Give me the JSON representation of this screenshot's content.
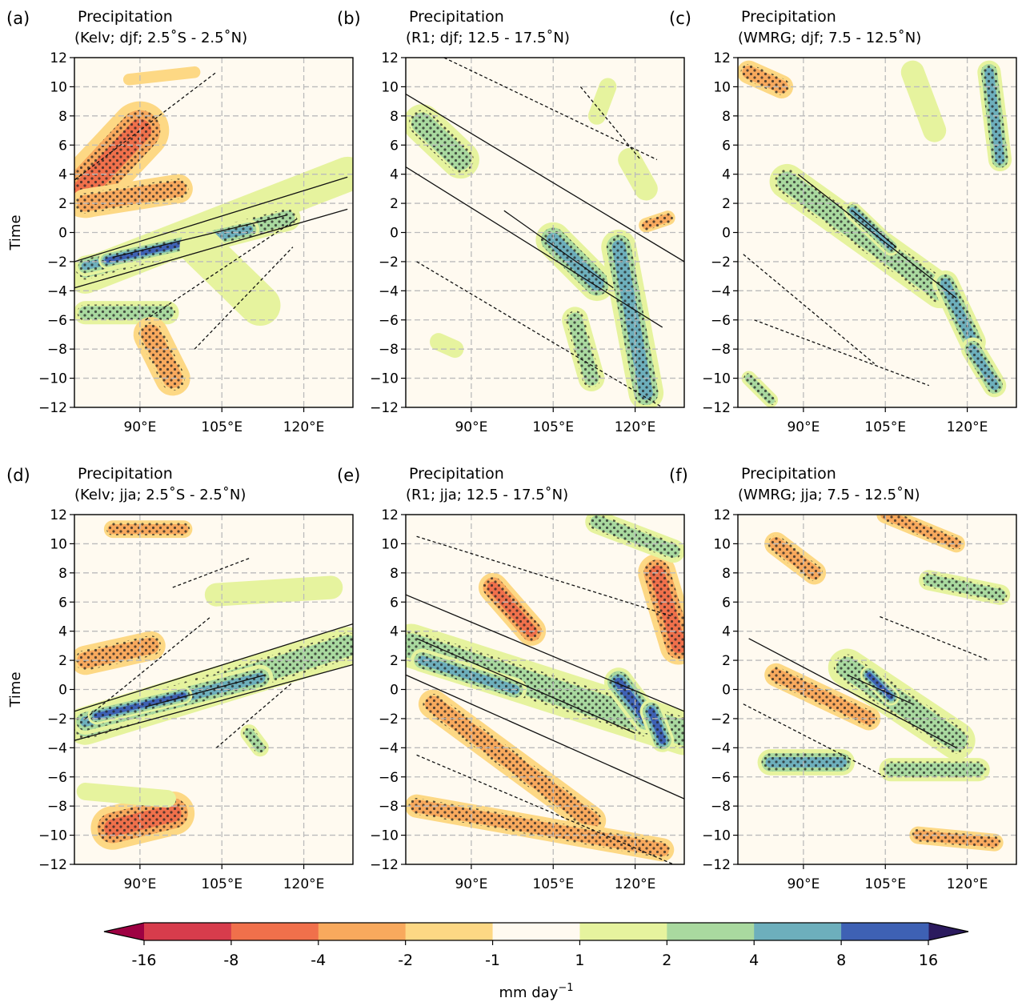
{
  "figure": {
    "ylabel": "Time",
    "colorbar": {
      "levels": [
        "-16",
        "-8",
        "-4",
        "-2",
        "-1",
        "1",
        "2",
        "4",
        "8",
        "16"
      ],
      "colors": [
        "#d73c4c",
        "#f0704b",
        "#f8a95d",
        "#fdd884",
        "#fffaf0",
        "#e6f39e",
        "#a9d99f",
        "#6dafbc",
        "#3e61b4"
      ],
      "extend_low_color": "#9e0142",
      "extend_high_color": "#2b1a5e",
      "unit_label": "mm day",
      "unit_exponent": "−1"
    }
  },
  "chart_data": [
    {
      "panel": "(a)",
      "type": "heatmap",
      "title": "Precipitation",
      "subtitle": "(Kelv; djf; 2.5˚S - 2.5˚N)",
      "xlabel": "",
      "ylabel": "Time",
      "xticks": [
        "90°E",
        "105°E",
        "120°E"
      ],
      "xtick_values": [
        90,
        105,
        120
      ],
      "yticks": [
        "12",
        "10",
        "8",
        "6",
        "4",
        "2",
        "0",
        "−2",
        "−4",
        "−6",
        "−8",
        "−10",
        "−12"
      ],
      "xlim": [
        78,
        129
      ],
      "ylim": [
        -12,
        12
      ],
      "grid": true,
      "bands": [
        {
          "x1": 80,
          "y1": -3.0,
          "x2": 128,
          "y2": 4.0,
          "w": 1.2,
          "v": 1.5
        },
        {
          "x1": 80,
          "y1": -2.6,
          "x2": 117,
          "y2": 1.0,
          "w": 0.9,
          "v": 3
        },
        {
          "x1": 80,
          "y1": -2.3,
          "x2": 110,
          "y2": 0.2,
          "w": 0.7,
          "v": 6
        },
        {
          "x1": 84,
          "y1": -1.9,
          "x2": 100,
          "y2": -0.6,
          "w": 0.6,
          "v": 10
        },
        {
          "x1": 80,
          "y1": -5.5,
          "x2": 95,
          "y2": -5.5,
          "w": 0.8,
          "v": 2
        },
        {
          "x1": 80,
          "y1": 3.0,
          "x2": 90,
          "y2": 7.0,
          "w": 2.0,
          "v": -4
        },
        {
          "x1": 80,
          "y1": 2.0,
          "x2": 97,
          "y2": 3.0,
          "w": 1.0,
          "v": -3
        },
        {
          "x1": 92,
          "y1": -7.0,
          "x2": 96,
          "y2": -10.0,
          "w": 1.2,
          "v": -3
        },
        {
          "x1": 88,
          "y1": 10.5,
          "x2": 100,
          "y2": 11.0,
          "w": 0.4,
          "v": -1.5
        },
        {
          "x1": 101,
          "y1": -1.0,
          "x2": 112,
          "y2": -5.0,
          "w": 1.4,
          "v": 1.5
        }
      ],
      "contours": [
        {
          "style": "solid",
          "x": [
            78,
            128
          ],
          "y": [
            -2.0,
            3.8
          ]
        },
        {
          "style": "solid",
          "x": [
            78,
            128
          ],
          "y": [
            -3.8,
            1.6
          ]
        },
        {
          "style": "solid",
          "x": [
            85,
            117
          ],
          "y": [
            -1.7,
            1.2
          ]
        },
        {
          "style": "dashed",
          "x": [
            78,
            104
          ],
          "y": [
            3.6,
            11.0
          ]
        },
        {
          "style": "dashed",
          "x": [
            91,
            119
          ],
          "y": [
            -6.0,
            1.0
          ]
        },
        {
          "style": "dashed",
          "x": [
            100,
            118
          ],
          "y": [
            -8.0,
            -1.0
          ]
        }
      ]
    },
    {
      "panel": "(b)",
      "type": "heatmap",
      "title": "Precipitation",
      "subtitle": "(R1; djf; 12.5 - 17.5˚N)",
      "xlabel": "",
      "ylabel": "",
      "xticks": [
        "90°E",
        "105°E",
        "120°E"
      ],
      "xtick_values": [
        90,
        105,
        120
      ],
      "yticks": [
        "12",
        "10",
        "8",
        "6",
        "4",
        "2",
        "0",
        "−2",
        "−4",
        "−6",
        "−8",
        "−10",
        "−12"
      ],
      "xlim": [
        78,
        129
      ],
      "ylim": [
        -12,
        12
      ],
      "grid": true,
      "bands": [
        {
          "x1": 81,
          "y1": 7.5,
          "x2": 88,
          "y2": 5.0,
          "w": 1.3,
          "v": 2.5
        },
        {
          "x1": 105,
          "y1": -0.5,
          "x2": 113,
          "y2": -3.5,
          "w": 1.2,
          "v": 4
        },
        {
          "x1": 117,
          "y1": -1.0,
          "x2": 122,
          "y2": -11.0,
          "w": 1.2,
          "v": 5
        },
        {
          "x1": 109,
          "y1": -6.0,
          "x2": 112,
          "y2": -10.0,
          "w": 0.9,
          "v": 3
        },
        {
          "x1": 113,
          "y1": 8.0,
          "x2": 115,
          "y2": 10.0,
          "w": 0.6,
          "v": 1.5
        },
        {
          "x1": 119,
          "y1": 5.0,
          "x2": 122,
          "y2": 3.0,
          "w": 0.8,
          "v": 1.5
        },
        {
          "x1": 122,
          "y1": 0.5,
          "x2": 126,
          "y2": 1.0,
          "w": 0.5,
          "v": -2
        },
        {
          "x1": 84,
          "y1": -7.5,
          "x2": 87,
          "y2": -8.0,
          "w": 0.6,
          "v": 1.5
        }
      ],
      "contours": [
        {
          "style": "solid",
          "x": [
            78,
            129
          ],
          "y": [
            9.5,
            -2.0
          ]
        },
        {
          "style": "solid",
          "x": [
            78,
            125
          ],
          "y": [
            4.5,
            -6.5
          ]
        },
        {
          "style": "solid",
          "x": [
            96,
            116
          ],
          "y": [
            1.5,
            -3.8
          ]
        },
        {
          "style": "dashed",
          "x": [
            85,
            124
          ],
          "y": [
            12.0,
            5.0
          ]
        },
        {
          "style": "dashed",
          "x": [
            80,
            125
          ],
          "y": [
            -2.0,
            -12.0
          ]
        },
        {
          "style": "dashed",
          "x": [
            110,
            121
          ],
          "y": [
            10.0,
            5.0
          ]
        }
      ]
    },
    {
      "panel": "(c)",
      "type": "heatmap",
      "title": "Precipitation",
      "subtitle": "(WMRG; djf; 7.5 - 12.5˚N)",
      "xlabel": "",
      "ylabel": "",
      "xticks": [
        "90°E",
        "105°E",
        "120°E"
      ],
      "xtick_values": [
        90,
        105,
        120
      ],
      "yticks": [
        "12",
        "10",
        "8",
        "6",
        "4",
        "2",
        "0",
        "−2",
        "−4",
        "−6",
        "−8",
        "−10",
        "−12"
      ],
      "xlim": [
        78,
        129
      ],
      "ylim": [
        -12,
        12
      ],
      "grid": true,
      "bands": [
        {
          "x1": 87,
          "y1": 3.5,
          "x2": 115,
          "y2": -4.0,
          "w": 1.2,
          "v": 3
        },
        {
          "x1": 99,
          "y1": 1.5,
          "x2": 106,
          "y2": -1.0,
          "w": 0.6,
          "v": 6
        },
        {
          "x1": 116,
          "y1": -3.5,
          "x2": 121,
          "y2": -7.5,
          "w": 0.9,
          "v": 4
        },
        {
          "x1": 121,
          "y1": -8.0,
          "x2": 125,
          "y2": -10.5,
          "w": 0.8,
          "v": 4
        },
        {
          "x1": 124,
          "y1": 11.0,
          "x2": 126,
          "y2": 5.0,
          "w": 0.8,
          "v": 6
        },
        {
          "x1": 110,
          "y1": 11.0,
          "x2": 114,
          "y2": 7.0,
          "w": 0.8,
          "v": 1.5
        },
        {
          "x1": 80,
          "y1": 11.0,
          "x2": 86,
          "y2": 10.0,
          "w": 0.8,
          "v": -2
        },
        {
          "x1": 80,
          "y1": -10.0,
          "x2": 84,
          "y2": -11.5,
          "w": 0.5,
          "v": 2
        }
      ],
      "contours": [
        {
          "style": "solid",
          "x": [
            89,
            118
          ],
          "y": [
            4.0,
            -4.5
          ]
        },
        {
          "style": "solid",
          "x": [
            99,
            107
          ],
          "y": [
            1.5,
            -1.0
          ]
        },
        {
          "style": "dashed",
          "x": [
            79,
            103
          ],
          "y": [
            -1.5,
            -9.0
          ]
        },
        {
          "style": "dashed",
          "x": [
            81,
            113
          ],
          "y": [
            -6.0,
            -10.5
          ]
        }
      ]
    },
    {
      "panel": "(d)",
      "type": "heatmap",
      "title": "Precipitation",
      "subtitle": "(Kelv; jja; 2.5˚S - 2.5˚N)",
      "xlabel": "",
      "ylabel": "Time",
      "xticks": [
        "90°E",
        "105°E",
        "120°E"
      ],
      "xtick_values": [
        90,
        105,
        120
      ],
      "yticks": [
        "12",
        "10",
        "8",
        "6",
        "4",
        "2",
        "0",
        "−2",
        "−4",
        "−6",
        "−8",
        "−10",
        "−12"
      ],
      "xlim": [
        78,
        129
      ],
      "ylim": [
        -12,
        12
      ],
      "grid": true,
      "bands": [
        {
          "x1": 80,
          "y1": -2.5,
          "x2": 128,
          "y2": 3.0,
          "w": 1.3,
          "v": 3
        },
        {
          "x1": 80,
          "y1": -2.2,
          "x2": 112,
          "y2": 0.8,
          "w": 0.9,
          "v": 6
        },
        {
          "x1": 82,
          "y1": -1.8,
          "x2": 98,
          "y2": -0.4,
          "w": 0.6,
          "v": 10
        },
        {
          "x1": 85,
          "y1": -9.5,
          "x2": 96,
          "y2": -8.5,
          "w": 1.5,
          "v": -4
        },
        {
          "x1": 85,
          "y1": 11.0,
          "x2": 98,
          "y2": 11.0,
          "w": 0.6,
          "v": -3
        },
        {
          "x1": 80,
          "y1": 2.0,
          "x2": 92,
          "y2": 3.0,
          "w": 1.0,
          "v": -2
        },
        {
          "x1": 104,
          "y1": 6.5,
          "x2": 125,
          "y2": 7.0,
          "w": 0.8,
          "v": 1.5
        },
        {
          "x1": 110,
          "y1": -3.0,
          "x2": 112,
          "y2": -4.0,
          "w": 0.6,
          "v": 2
        },
        {
          "x1": 80,
          "y1": -7.0,
          "x2": 95,
          "y2": -7.5,
          "w": 0.6,
          "v": 1.5
        }
      ],
      "contours": [
        {
          "style": "solid",
          "x": [
            78,
            129
          ],
          "y": [
            -1.5,
            4.5
          ]
        },
        {
          "style": "solid",
          "x": [
            78,
            129
          ],
          "y": [
            -3.5,
            1.7
          ]
        },
        {
          "style": "solid",
          "x": [
            91,
            113
          ],
          "y": [
            -1.2,
            1.0
          ]
        },
        {
          "style": "dashed",
          "x": [
            80,
            103
          ],
          "y": [
            -2.0,
            5.0
          ]
        },
        {
          "style": "dashed",
          "x": [
            96,
            110
          ],
          "y": [
            7.0,
            9.0
          ]
        },
        {
          "style": "dashed",
          "x": [
            104,
            118
          ],
          "y": [
            -4.0,
            0.5
          ]
        }
      ]
    },
    {
      "panel": "(e)",
      "type": "heatmap",
      "title": "Precipitation",
      "subtitle": "(R1; jja; 12.5 - 17.5˚N)",
      "xlabel": "",
      "ylabel": "",
      "xticks": [
        "90°E",
        "105°E",
        "120°E"
      ],
      "xtick_values": [
        90,
        105,
        120
      ],
      "yticks": [
        "12",
        "10",
        "8",
        "6",
        "4",
        "2",
        "0",
        "−2",
        "−4",
        "−6",
        "−8",
        "−10",
        "−12"
      ],
      "xlim": [
        78,
        129
      ],
      "ylim": [
        -12,
        12
      ],
      "grid": true,
      "bands": [
        {
          "x1": 79,
          "y1": 3.0,
          "x2": 129,
          "y2": -3.0,
          "w": 1.5,
          "v": 3
        },
        {
          "x1": 81,
          "y1": 2.0,
          "x2": 98,
          "y2": 0.0,
          "w": 0.8,
          "v": 6
        },
        {
          "x1": 117,
          "y1": 0.5,
          "x2": 122,
          "y2": -2.0,
          "w": 1.0,
          "v": 10
        },
        {
          "x1": 123,
          "y1": -1.5,
          "x2": 125,
          "y2": -3.5,
          "w": 0.8,
          "v": 8
        },
        {
          "x1": 94,
          "y1": 7.0,
          "x2": 101,
          "y2": 4.0,
          "w": 1.0,
          "v": -5
        },
        {
          "x1": 124,
          "y1": 8.0,
          "x2": 128,
          "y2": 3.0,
          "w": 1.3,
          "v": -6
        },
        {
          "x1": 83,
          "y1": -1.0,
          "x2": 112,
          "y2": -9.0,
          "w": 1.0,
          "v": -2.5
        },
        {
          "x1": 80,
          "y1": -8.0,
          "x2": 125,
          "y2": -11.0,
          "w": 0.8,
          "v": -2
        },
        {
          "x1": 113,
          "y1": 11.5,
          "x2": 127,
          "y2": 9.5,
          "w": 0.8,
          "v": 2
        }
      ],
      "contours": [
        {
          "style": "solid",
          "x": [
            78,
            129
          ],
          "y": [
            6.5,
            -1.5
          ]
        },
        {
          "style": "solid",
          "x": [
            78,
            129
          ],
          "y": [
            1.0,
            -7.5
          ]
        },
        {
          "style": "solid",
          "x": [
            80,
            120
          ],
          "y": [
            3.5,
            -3.0
          ]
        },
        {
          "style": "dashed",
          "x": [
            80,
            127
          ],
          "y": [
            10.5,
            5.0
          ]
        },
        {
          "style": "dashed",
          "x": [
            80,
            127
          ],
          "y": [
            -4.5,
            -12.0
          ]
        }
      ]
    },
    {
      "panel": "(f)",
      "type": "heatmap",
      "title": "Precipitation",
      "subtitle": "(WMRG; jja; 7.5 - 12.5˚N)",
      "xlabel": "",
      "ylabel": "",
      "xticks": [
        "90°E",
        "105°E",
        "120°E"
      ],
      "xtick_values": [
        90,
        105,
        120
      ],
      "yticks": [
        "12",
        "10",
        "8",
        "6",
        "4",
        "2",
        "0",
        "−2",
        "−4",
        "−6",
        "−8",
        "−10",
        "−12"
      ],
      "xlim": [
        78,
        129
      ],
      "ylim": [
        -12,
        12
      ],
      "grid": true,
      "bands": [
        {
          "x1": 98,
          "y1": 1.5,
          "x2": 118,
          "y2": -3.5,
          "w": 1.3,
          "v": 3
        },
        {
          "x1": 102,
          "y1": 1.0,
          "x2": 106,
          "y2": -0.5,
          "w": 0.6,
          "v": 8
        },
        {
          "x1": 84,
          "y1": -5.0,
          "x2": 97,
          "y2": -5.0,
          "w": 0.9,
          "v": 5
        },
        {
          "x1": 106,
          "y1": -5.5,
          "x2": 122,
          "y2": -5.5,
          "w": 0.8,
          "v": 3
        },
        {
          "x1": 85,
          "y1": 1.0,
          "x2": 102,
          "y2": -2.0,
          "w": 0.8,
          "v": -3
        },
        {
          "x1": 85,
          "y1": 10.0,
          "x2": 92,
          "y2": 8.0,
          "w": 0.8,
          "v": -2
        },
        {
          "x1": 105,
          "y1": 12.0,
          "x2": 118,
          "y2": 10.0,
          "w": 0.6,
          "v": -2
        },
        {
          "x1": 113,
          "y1": 7.5,
          "x2": 126,
          "y2": 6.5,
          "w": 0.7,
          "v": 2
        },
        {
          "x1": 111,
          "y1": -10.0,
          "x2": 125,
          "y2": -10.5,
          "w": 0.6,
          "v": -2
        }
      ],
      "contours": [
        {
          "style": "solid",
          "x": [
            80,
            118
          ],
          "y": [
            3.5,
            -4.0
          ]
        },
        {
          "style": "solid",
          "x": [
            98,
            110
          ],
          "y": [
            1.0,
            -1.0
          ]
        },
        {
          "style": "dashed",
          "x": [
            79,
            105
          ],
          "y": [
            -1.0,
            -6.0
          ]
        },
        {
          "style": "dashed",
          "x": [
            104,
            124
          ],
          "y": [
            5.0,
            2.0
          ]
        }
      ]
    }
  ]
}
